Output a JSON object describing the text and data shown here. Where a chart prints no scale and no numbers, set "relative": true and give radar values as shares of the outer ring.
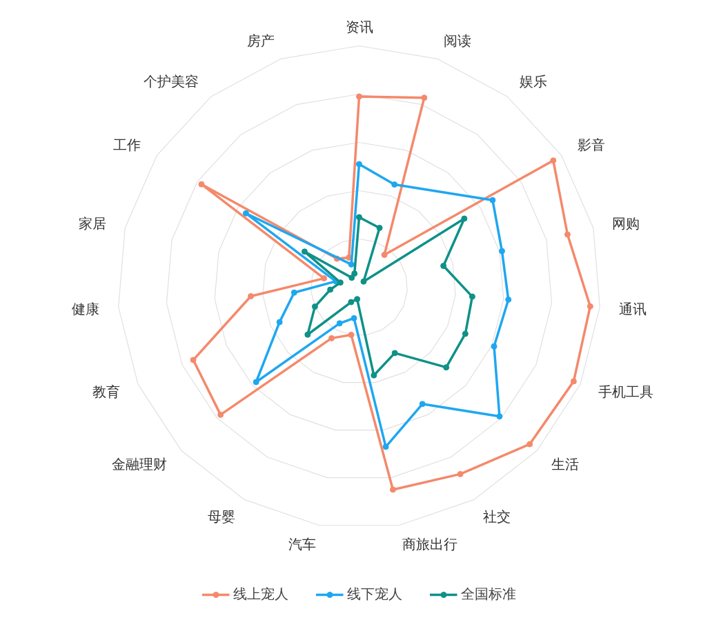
{
  "chart_data": {
    "type": "radar",
    "relative": true,
    "grid": true,
    "legend": "bottom",
    "marker": "circle",
    "categories": [
      "资讯",
      "阅读",
      "娱乐",
      "影音",
      "网购",
      "通讯",
      "手机工具",
      "生活",
      "社交",
      "商旅出行",
      "汽车",
      "母婴",
      "金融理财",
      "教育",
      "健康",
      "家居",
      "工作",
      "个护美容",
      "房产"
    ],
    "series": [
      {
        "name": "线上宠人",
        "color": "#f4896b",
        "values": [
          0.79,
          0.83,
          0.17,
          0.96,
          0.89,
          0.96,
          0.97,
          0.96,
          0.88,
          0.85,
          0.2,
          0.24,
          0.78,
          0.75,
          0.45,
          0.15,
          0.78,
          0.15,
          0.13
        ]
      },
      {
        "name": "线下宠人",
        "color": "#1ea7f0",
        "values": [
          0.51,
          0.45,
          null,
          0.66,
          0.61,
          0.62,
          0.61,
          0.79,
          0.55,
          0.67,
          0.13,
          0.17,
          0.58,
          0.36,
          0.27,
          0.1,
          0.56,
          null,
          0.1
        ]
      },
      {
        "name": "全国标准",
        "color": "#0e9188",
        "values": [
          0.29,
          0.26,
          0.03,
          0.52,
          0.36,
          0.47,
          0.48,
          0.49,
          0.31,
          0.37,
          0.05,
          0.07,
          0.29,
          0.2,
          0.12,
          0.08,
          0.27,
          0.05,
          0.06
        ]
      }
    ]
  }
}
